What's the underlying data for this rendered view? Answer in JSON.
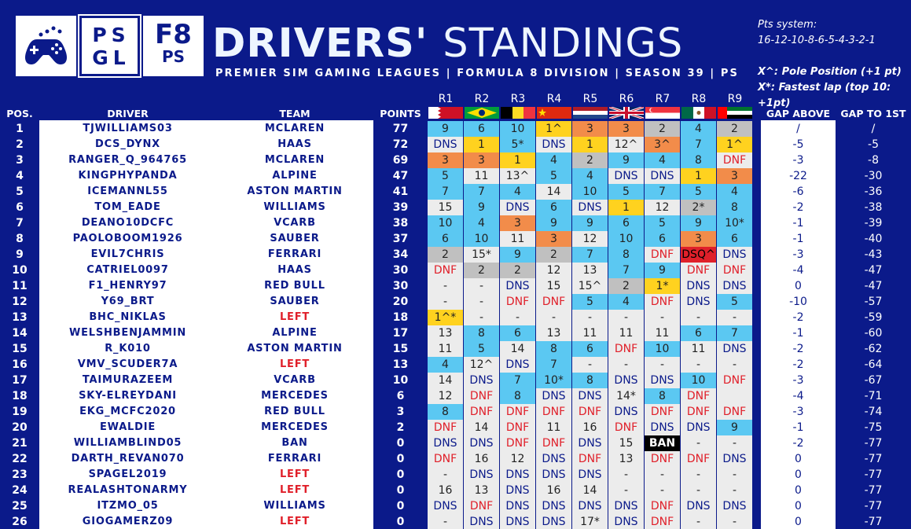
{
  "header": {
    "logo_psgl_line1": "PS",
    "logo_psgl_line2": "GL",
    "logo_f8_top": "F8",
    "logo_f8_bottom": "PS",
    "title_bold": "DRIVERS'",
    "title_light": "STANDINGS",
    "subtitle": "PREMIER SIM GAMING LEAGUES | FORMULA 8 DIVISION | SEASON 39 | PS",
    "pts_system_label": "Pts system:",
    "pts_system_values": "16-12-10-8-6-5-4-3-2-1",
    "pole_note_key": "X^:",
    "pole_note_text": "Pole Position (+1 pt)",
    "fastest_note_key": "X*:",
    "fastest_note_text": "Fastest lap (top 10: +1pt)"
  },
  "columns": {
    "pos": "POS.",
    "driver": "DRIVER",
    "team": "TEAM",
    "points": "POINTS",
    "gap_above": "GAP ABOVE",
    "gap_first": "GAP TO 1ST"
  },
  "races": [
    "R1",
    "R2",
    "R3",
    "R4",
    "R5",
    "R6",
    "R7",
    "R8",
    "R9"
  ],
  "colors": {
    "background": "#0b1a8a",
    "win": "#ffd21f",
    "podium_orange": "#f28c4a",
    "silver": "#c0c0c0",
    "points_finish": "#5bc8f2",
    "no_points": "#ececec",
    "left_team": "#e0202a"
  },
  "rows": [
    {
      "pos": "1",
      "driver": "TJWILLIAMS03",
      "team": "MCLAREN",
      "points": "77",
      "results": [
        "9",
        "6",
        "10",
        "1^",
        "3",
        "3",
        "2",
        "4",
        "2"
      ],
      "gap_above": "/",
      "gap_first": "/"
    },
    {
      "pos": "2",
      "driver": "DCS_DYNX",
      "team": "HAAS",
      "points": "72",
      "results": [
        "DNS",
        "1",
        "5*",
        "DNS",
        "1",
        "12^",
        "3^",
        "7",
        "1^"
      ],
      "gap_above": "-5",
      "gap_first": "-5"
    },
    {
      "pos": "3",
      "driver": "RANGER_Q_964765",
      "team": "MCLAREN",
      "points": "69",
      "results": [
        "3",
        "3",
        "1",
        "4",
        "2",
        "9",
        "4",
        "8",
        "DNF"
      ],
      "gap_above": "-3",
      "gap_first": "-8"
    },
    {
      "pos": "4",
      "driver": "KINGPHYPANDA",
      "team": "ALPINE",
      "points": "47",
      "results": [
        "5",
        "11",
        "13^",
        "5",
        "4",
        "DNS",
        "DNS",
        "1",
        "3"
      ],
      "gap_above": "-22",
      "gap_first": "-30"
    },
    {
      "pos": "5",
      "driver": "ICEMANNL55",
      "team": "ASTON MARTIN",
      "points": "41",
      "results": [
        "7",
        "7",
        "4",
        "14",
        "10",
        "5",
        "7",
        "5",
        "4"
      ],
      "gap_above": "-6",
      "gap_first": "-36"
    },
    {
      "pos": "6",
      "driver": "TOM_EADE",
      "team": "WILLIAMS",
      "points": "39",
      "results": [
        "15",
        "9",
        "DNS",
        "6",
        "DNS",
        "1",
        "12",
        "2*",
        "8"
      ],
      "gap_above": "-2",
      "gap_first": "-38"
    },
    {
      "pos": "7",
      "driver": "DEANO10DCFC",
      "team": "VCARB",
      "points": "38",
      "results": [
        "10",
        "4",
        "3",
        "9",
        "9",
        "6",
        "5",
        "9",
        "10*"
      ],
      "gap_above": "-1",
      "gap_first": "-39"
    },
    {
      "pos": "8",
      "driver": "PAOLOBOOM1926",
      "team": "SAUBER",
      "points": "37",
      "results": [
        "6",
        "10",
        "11",
        "3",
        "12",
        "10",
        "6",
        "3",
        "6"
      ],
      "gap_above": "-1",
      "gap_first": "-40"
    },
    {
      "pos": "9",
      "driver": "EVIL7CHRIS",
      "team": "FERRARI",
      "points": "34",
      "results": [
        "2",
        "15*",
        "9",
        "2",
        "7",
        "8",
        "DNF",
        "DSQ^",
        "DNS"
      ],
      "gap_above": "-3",
      "gap_first": "-43"
    },
    {
      "pos": "10",
      "driver": "CATRIEL0097",
      "team": "HAAS",
      "points": "30",
      "results": [
        "DNF",
        "2",
        "2",
        "12",
        "13",
        "7",
        "9",
        "DNF",
        "DNF"
      ],
      "gap_above": "-4",
      "gap_first": "-47"
    },
    {
      "pos": "11",
      "driver": "F1_HENRY97",
      "team": "RED BULL",
      "points": "30",
      "results": [
        "-",
        "-",
        "DNS",
        "15",
        "15^",
        "2",
        "1*",
        "DNS",
        "DNS"
      ],
      "gap_above": "0",
      "gap_first": "-47"
    },
    {
      "pos": "12",
      "driver": "Y69_BRT",
      "team": "SAUBER",
      "points": "20",
      "results": [
        "-",
        "-",
        "DNF",
        "DNF",
        "5",
        "4",
        "DNF",
        "DNS",
        "5"
      ],
      "gap_above": "-10",
      "gap_first": "-57"
    },
    {
      "pos": "13",
      "driver": "BHC_NIKLAS",
      "team": "LEFT",
      "points": "18",
      "results": [
        "1^*",
        "-",
        "-",
        "-",
        "-",
        "-",
        "-",
        "-",
        "-"
      ],
      "gap_above": "-2",
      "gap_first": "-59"
    },
    {
      "pos": "14",
      "driver": "WELSHBENJAMMIN",
      "team": "ALPINE",
      "points": "17",
      "results": [
        "13",
        "8",
        "6",
        "13",
        "11",
        "11",
        "11",
        "6",
        "7"
      ],
      "gap_above": "-1",
      "gap_first": "-60"
    },
    {
      "pos": "15",
      "driver": "R_K010",
      "team": "ASTON MARTIN",
      "points": "15",
      "results": [
        "11",
        "5",
        "14",
        "8",
        "6",
        "DNF",
        "10",
        "11",
        "DNS"
      ],
      "gap_above": "-2",
      "gap_first": "-62"
    },
    {
      "pos": "16",
      "driver": "VMV_SCUDER7A",
      "team": "LEFT",
      "points": "13",
      "results": [
        "4",
        "12^",
        "DNS",
        "7",
        "-",
        "-",
        "-",
        "-",
        "-"
      ],
      "gap_above": "-2",
      "gap_first": "-64"
    },
    {
      "pos": "17",
      "driver": "TAIMURAZEEM",
      "team": "VCARB",
      "points": "10",
      "results": [
        "14",
        "DNS",
        "7",
        "10*",
        "8",
        "DNS",
        "DNS",
        "10",
        "DNF"
      ],
      "gap_above": "-3",
      "gap_first": "-67"
    },
    {
      "pos": "18",
      "driver": "SKY-ELREYDANI",
      "team": "MERCEDES",
      "points": "6",
      "results": [
        "12",
        "DNF",
        "8",
        "DNS",
        "DNS",
        "14*",
        "8",
        "DNF",
        ""
      ],
      "gap_above": "-4",
      "gap_first": "-71"
    },
    {
      "pos": "19",
      "driver": "EKG_MCFC2020",
      "team": "RED BULL",
      "points": "3",
      "results": [
        "8",
        "DNF",
        "DNF",
        "DNF",
        "DNF",
        "DNS",
        "DNF",
        "DNF",
        "DNF"
      ],
      "gap_above": "-3",
      "gap_first": "-74"
    },
    {
      "pos": "20",
      "driver": "EWALDIE",
      "team": "MERCEDES",
      "points": "2",
      "results": [
        "DNF",
        "14",
        "DNF",
        "11",
        "16",
        "DNF",
        "DNS",
        "DNS",
        "9"
      ],
      "gap_above": "-1",
      "gap_first": "-75"
    },
    {
      "pos": "21",
      "driver": "WILLIAMBLIND05",
      "team": "BAN",
      "points": "0",
      "results": [
        "DNS",
        "DNS",
        "DNF",
        "DNF",
        "DNS",
        "15",
        "BAN",
        "-",
        "-"
      ],
      "gap_above": "-2",
      "gap_first": "-77"
    },
    {
      "pos": "22",
      "driver": "DARTH_REVAN070",
      "team": "FERRARI",
      "points": "0",
      "results": [
        "DNF",
        "16",
        "12",
        "DNS",
        "DNF",
        "13",
        "DNF",
        "DNF",
        "DNS"
      ],
      "gap_above": "0",
      "gap_first": "-77"
    },
    {
      "pos": "23",
      "driver": "SPAGEL2019",
      "team": "LEFT",
      "points": "0",
      "results": [
        "-",
        "DNS",
        "DNS",
        "DNS",
        "DNS",
        "-",
        "-",
        "-",
        "-"
      ],
      "gap_above": "0",
      "gap_first": "-77"
    },
    {
      "pos": "24",
      "driver": "REALASHTONARMY",
      "team": "LEFT",
      "points": "0",
      "results": [
        "16",
        "13",
        "DNS",
        "16",
        "14",
        "-",
        "-",
        "-",
        "-"
      ],
      "gap_above": "0",
      "gap_first": "-77"
    },
    {
      "pos": "25",
      "driver": "ITZMO_05",
      "team": "WILLIAMS",
      "points": "0",
      "results": [
        "DNS",
        "DNF",
        "DNS",
        "DNS",
        "DNS",
        "DNS",
        "DNF",
        "DNS",
        "DNS"
      ],
      "gap_above": "0",
      "gap_first": "-77"
    },
    {
      "pos": "26",
      "driver": "GIOGAMERZ09",
      "team": "LEFT",
      "points": "0",
      "results": [
        "-",
        "DNS",
        "DNS",
        "DNS",
        "17*",
        "DNS",
        "DNF",
        "-",
        "-"
      ],
      "gap_above": "0",
      "gap_first": "-77"
    }
  ]
}
